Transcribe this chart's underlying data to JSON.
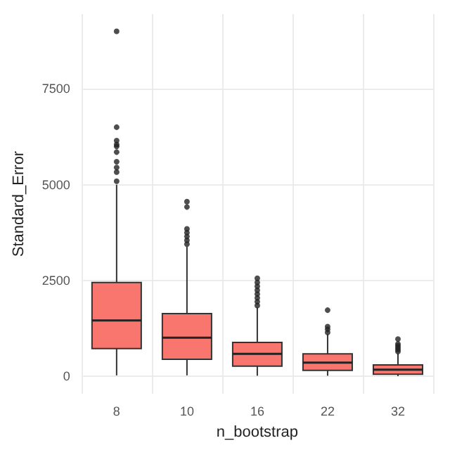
{
  "chart_data": {
    "type": "box",
    "xlabel": "n_bootstrap",
    "ylabel": "Standard_Error",
    "categories": [
      "8",
      "10",
      "16",
      "22",
      "32"
    ],
    "color": "#f8766d",
    "ylim": [
      -450,
      9450
    ],
    "yticks": [
      0,
      2500,
      5000,
      7500
    ],
    "grid": true,
    "legend": false,
    "boxes": [
      {
        "low": 30,
        "q1": 730,
        "median": 1460,
        "q3": 2450,
        "high": 5000,
        "outliers": [
          5090,
          5330,
          5450,
          5600,
          5850,
          6000,
          6050,
          6150,
          6500,
          9000
        ]
      },
      {
        "low": 30,
        "q1": 450,
        "median": 1010,
        "q3": 1640,
        "high": 3380,
        "outliers": [
          3450,
          3550,
          3650,
          3750,
          3850,
          4420,
          4560
        ]
      },
      {
        "low": 20,
        "q1": 270,
        "median": 590,
        "q3": 890,
        "high": 1800,
        "outliers": [
          1850,
          1950,
          2050,
          2150,
          2250,
          2350,
          2450,
          2560
        ]
      },
      {
        "low": 20,
        "q1": 160,
        "median": 360,
        "q3": 590,
        "high": 1100,
        "outliers": [
          1150,
          1230,
          1300,
          1730
        ]
      },
      {
        "low": 10,
        "q1": 60,
        "median": 180,
        "q3": 300,
        "high": 600,
        "outliers": [
          650,
          700,
          750,
          800,
          850,
          975
        ]
      }
    ]
  }
}
